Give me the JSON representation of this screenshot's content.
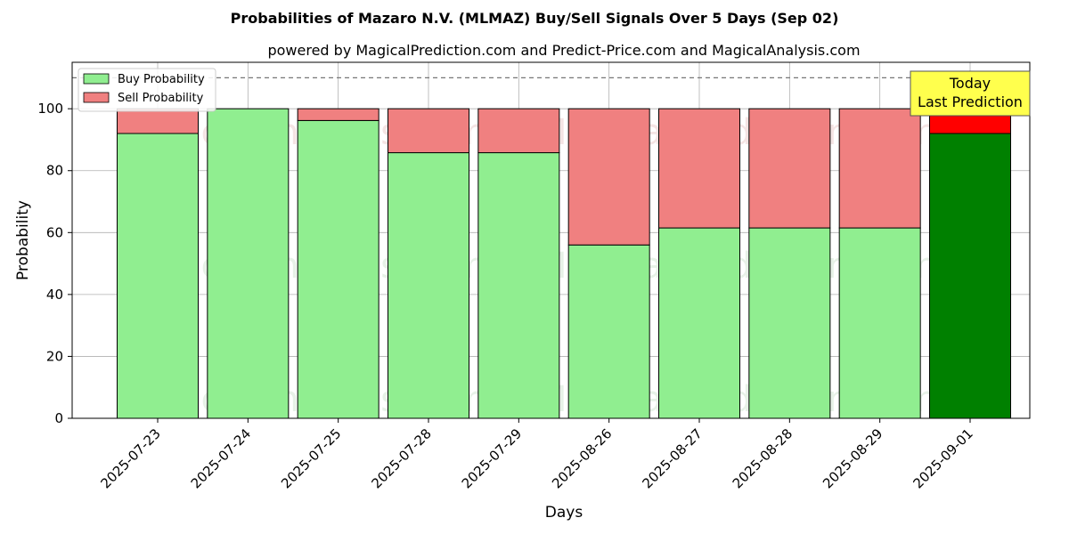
{
  "chart_data": {
    "type": "bar",
    "stacked": true,
    "title": "Probabilities of Mazaro N.V. (MLMAZ) Buy/Sell Signals Over 5 Days (Sep 02)",
    "subtitle": "powered by MagicalPrediction.com and Predict-Price.com and MagicalAnalysis.com",
    "xlabel": "Days",
    "ylabel": "Probability",
    "ylim": [
      0,
      115
    ],
    "yticks": [
      0,
      20,
      40,
      60,
      80,
      100
    ],
    "reference_line": 110,
    "grid": true,
    "legend_position": "top-left",
    "categories": [
      "2025-07-23",
      "2025-07-24",
      "2025-07-25",
      "2025-07-28",
      "2025-07-29",
      "2025-08-26",
      "2025-08-27",
      "2025-08-28",
      "2025-08-29",
      "2025-09-01"
    ],
    "series": [
      {
        "name": "Buy Probability",
        "values": [
          92,
          100,
          96.2,
          85.8,
          85.8,
          56,
          61.5,
          61.5,
          61.5,
          92
        ],
        "color": "#90ee90",
        "highlight_color": "#008000"
      },
      {
        "name": "Sell Probability",
        "values": [
          8,
          0,
          3.8,
          14.2,
          14.2,
          44,
          38.5,
          38.5,
          38.5,
          8
        ],
        "color": "#f08080",
        "highlight_color": "#ff0000"
      }
    ],
    "highlight_index": 9,
    "annotation": {
      "line1": "Today",
      "line2": "Last Prediction",
      "background": "#ffff4d"
    },
    "watermarks": [
      "MagicalAnalysis.com",
      "MagicalPrediction.com"
    ]
  }
}
